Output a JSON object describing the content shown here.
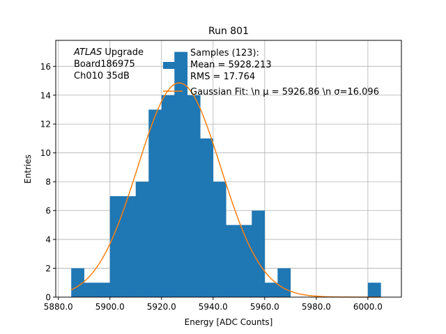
{
  "chart_data": {
    "type": "bar",
    "title": "Run 801",
    "xlabel": "Energy [ADC Counts]",
    "ylabel": "Entries",
    "xlim": [
      5879,
      6013
    ],
    "ylim": [
      0,
      17.8
    ],
    "xticks": [
      5880,
      5900,
      5920,
      5940,
      5960,
      5980,
      6000
    ],
    "xtick_labels": [
      "5880.0",
      "5900.0",
      "5920.0",
      "5940.0",
      "5960.0",
      "5980.0",
      "6000.0"
    ],
    "yticks": [
      0,
      2,
      4,
      6,
      8,
      10,
      12,
      14,
      16
    ],
    "ytick_labels": [
      "0",
      "2",
      "4",
      "6",
      "8",
      "10",
      "12",
      "14",
      "16"
    ],
    "grid": true,
    "bin_width": 5,
    "bins": [
      {
        "x0": 5885,
        "count": 2
      },
      {
        "x0": 5890,
        "count": 1
      },
      {
        "x0": 5895,
        "count": 1
      },
      {
        "x0": 5900,
        "count": 7
      },
      {
        "x0": 5905,
        "count": 7
      },
      {
        "x0": 5910,
        "count": 8
      },
      {
        "x0": 5915,
        "count": 13
      },
      {
        "x0": 5920,
        "count": 14
      },
      {
        "x0": 5925,
        "count": 17
      },
      {
        "x0": 5930,
        "count": 14
      },
      {
        "x0": 5935,
        "count": 11
      },
      {
        "x0": 5940,
        "count": 8
      },
      {
        "x0": 5945,
        "count": 5
      },
      {
        "x0": 5950,
        "count": 5
      },
      {
        "x0": 5955,
        "count": 6
      },
      {
        "x0": 5960,
        "count": 1
      },
      {
        "x0": 5965,
        "count": 2
      },
      {
        "x0": 6000,
        "count": 1
      }
    ],
    "fit": {
      "mu": 5926.86,
      "sigma": 16.096,
      "amplitude": 14.85,
      "x_start": 5885,
      "x_end": 6005
    },
    "annotation_lines": [
      {
        "italic": "ATLAS",
        "rest": " Upgrade"
      },
      {
        "italic": "",
        "rest": " Board186975"
      },
      {
        "italic": "",
        "rest": " Ch010 35dB"
      }
    ],
    "legend": {
      "placement": "upper-center",
      "entries": [
        {
          "lines": [
            "Samples (123):",
            " Mean = 5928.213",
            " RMS = 17.764"
          ]
        },
        {
          "lines": [
            "Gaussian Fit: \\n μ = 5926.86 \\n σ=16.096"
          ]
        }
      ]
    },
    "colors": {
      "hist": "#1f77b4",
      "fit": "#ff7f0e",
      "grid": "#b0b0b0"
    }
  }
}
